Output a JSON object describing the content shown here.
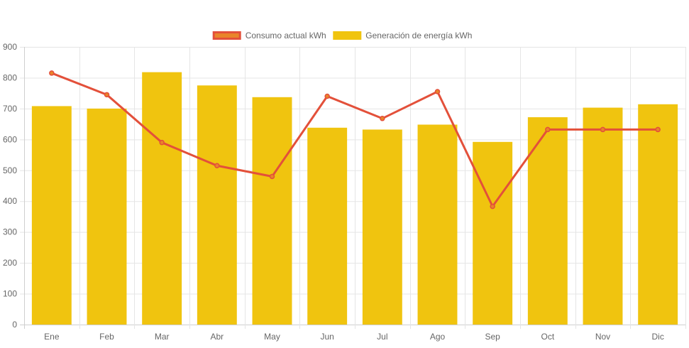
{
  "chart_data": {
    "type": "bar",
    "categories": [
      "Ene",
      "Feb",
      "Mar",
      "Abr",
      "May",
      "Jun",
      "Jul",
      "Ago",
      "Sep",
      "Oct",
      "Nov",
      "Dic"
    ],
    "series": [
      {
        "name": "Consumo actual kWh",
        "type": "line",
        "values": [
          815,
          745,
          590,
          515,
          480,
          740,
          668,
          755,
          383,
          632,
          632,
          632
        ],
        "color": "#e3503a",
        "legend_fill": "#e9852a"
      },
      {
        "name": "Generación de energía kWh",
        "type": "bar",
        "values": [
          708,
          700,
          818,
          775,
          737,
          638,
          632,
          648,
          592,
          672,
          703,
          714
        ],
        "color": "#f0c40f"
      }
    ],
    "title": "",
    "xlabel": "",
    "ylabel": "",
    "ylim": [
      0,
      900
    ],
    "yticks": [
      0,
      100,
      200,
      300,
      400,
      500,
      600,
      700,
      800,
      900
    ],
    "grid": true,
    "legend_position": "top"
  }
}
